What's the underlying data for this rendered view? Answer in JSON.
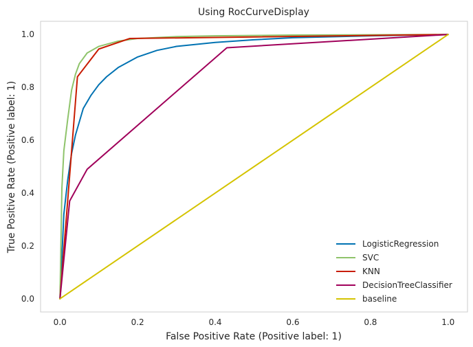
{
  "chart_data": {
    "type": "line",
    "title": "Using RocCurveDisplay",
    "xlabel": "False Positive Rate (Positive label: 1)",
    "ylabel": "True Positive Rate (Positive label: 1)",
    "xlim": [
      -0.05,
      1.05
    ],
    "ylim": [
      -0.05,
      1.05
    ],
    "grid": false,
    "legend_position": "lower-right",
    "x_ticks": [
      "0.0",
      "0.2",
      "0.4",
      "0.6",
      "0.8",
      "1.0"
    ],
    "y_ticks": [
      "0.0",
      "0.2",
      "0.4",
      "0.6",
      "0.8",
      "1.0"
    ],
    "series": [
      {
        "name": "LogisticRegression",
        "color": "#0072b2",
        "x": [
          0,
          0.01,
          0.02,
          0.03,
          0.04,
          0.05,
          0.06,
          0.08,
          0.1,
          0.12,
          0.15,
          0.2,
          0.25,
          0.3,
          0.4,
          0.5,
          0.6,
          0.8,
          1.0
        ],
        "y": [
          0,
          0.32,
          0.45,
          0.55,
          0.62,
          0.67,
          0.72,
          0.77,
          0.81,
          0.84,
          0.875,
          0.915,
          0.94,
          0.955,
          0.97,
          0.98,
          0.988,
          0.995,
          1.0
        ]
      },
      {
        "name": "SVC",
        "color": "#8ec36a",
        "x": [
          0,
          0.005,
          0.01,
          0.02,
          0.03,
          0.04,
          0.05,
          0.07,
          0.1,
          0.15,
          0.2,
          0.3,
          0.4,
          0.6,
          0.8,
          1.0
        ],
        "y": [
          0,
          0.42,
          0.56,
          0.68,
          0.79,
          0.85,
          0.89,
          0.93,
          0.955,
          0.975,
          0.985,
          0.992,
          0.995,
          0.998,
          0.999,
          1.0
        ]
      },
      {
        "name": "KNN",
        "color": "#c81c00",
        "x": [
          0,
          0.045,
          0.1,
          0.18,
          1.0
        ],
        "y": [
          0,
          0.84,
          0.945,
          0.985,
          1.0
        ]
      },
      {
        "name": "DecisionTreeClassifier",
        "color": "#a0005a",
        "x": [
          0,
          0.025,
          0.07,
          0.43,
          1.0
        ],
        "y": [
          0,
          0.37,
          0.49,
          0.95,
          1.0
        ]
      },
      {
        "name": "baseline",
        "color": "#d4c300",
        "x": [
          0,
          1.0
        ],
        "y": [
          0,
          1.0
        ]
      }
    ]
  }
}
